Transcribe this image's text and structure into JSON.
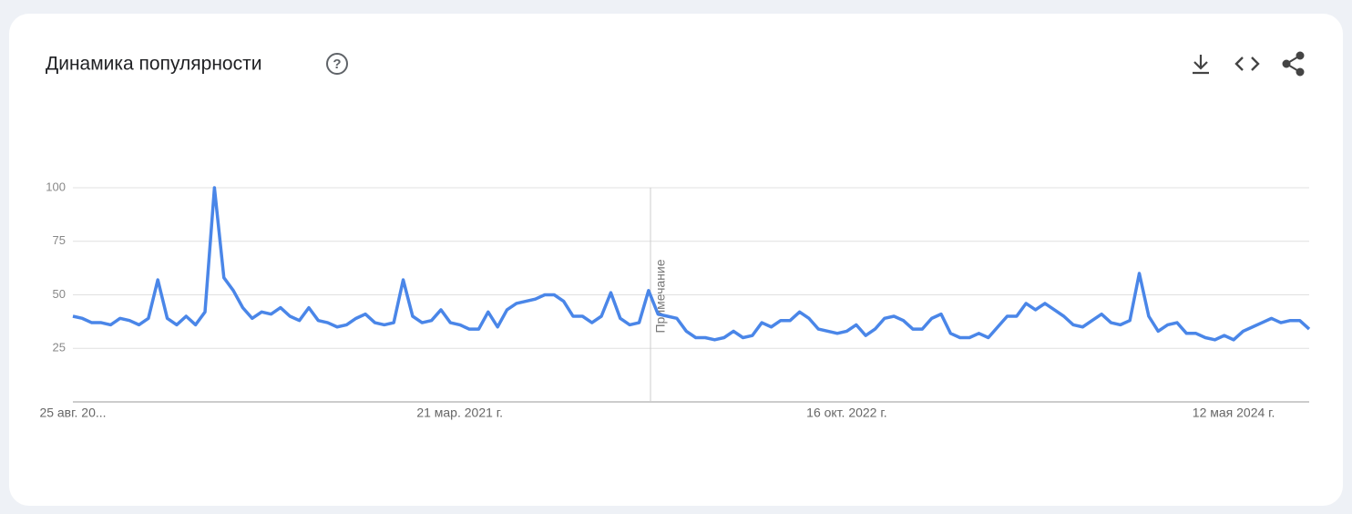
{
  "chart_data": {
    "type": "line",
    "title": "Динамика популярности",
    "annotation": "Примечание",
    "color": "#4a86e8",
    "grid": true,
    "ylim": [
      0,
      100
    ],
    "yticks": [
      25,
      50,
      75,
      100
    ],
    "categories": [
      "25 авг. 20...",
      null,
      null,
      null,
      null,
      null,
      null,
      null,
      null,
      null,
      null,
      null,
      null,
      null,
      null,
      null,
      null,
      null,
      null,
      null,
      null,
      null,
      null,
      null,
      null,
      null,
      null,
      null,
      null,
      null,
      null,
      null,
      null,
      null,
      null,
      null,
      null,
      null,
      null,
      null,
      null,
      "21 мар. 2021 г.",
      null,
      null,
      null,
      null,
      null,
      null,
      null,
      null,
      null,
      null,
      null,
      null,
      null,
      null,
      null,
      null,
      null,
      null,
      null,
      null,
      null,
      null,
      null,
      null,
      null,
      null,
      null,
      null,
      null,
      null,
      null,
      null,
      null,
      null,
      null,
      null,
      null,
      null,
      null,
      null,
      "16 окт. 2022 г.",
      null,
      null,
      null,
      null,
      null,
      null,
      null,
      null,
      null,
      null,
      null,
      null,
      null,
      null,
      null,
      null,
      null,
      null,
      null,
      null,
      null,
      null,
      null,
      null,
      null,
      null,
      null,
      null,
      null,
      null,
      null,
      null,
      null,
      null,
      null,
      null,
      null,
      null,
      null,
      null,
      "12 мая 2024 г.",
      null,
      null,
      null,
      null,
      null,
      null,
      null,
      null
    ],
    "values": [
      40,
      39,
      37,
      37,
      36,
      39,
      38,
      36,
      39,
      57,
      39,
      36,
      40,
      36,
      42,
      100,
      58,
      52,
      44,
      39,
      42,
      41,
      44,
      40,
      38,
      44,
      38,
      37,
      35,
      36,
      39,
      41,
      37,
      36,
      37,
      57,
      40,
      37,
      38,
      43,
      37,
      36,
      34,
      34,
      42,
      35,
      43,
      46,
      47,
      48,
      50,
      50,
      47,
      40,
      40,
      37,
      40,
      51,
      39,
      36,
      37,
      52,
      41,
      40,
      39,
      33,
      30,
      30,
      29,
      30,
      33,
      30,
      31,
      37,
      35,
      38,
      38,
      42,
      39,
      34,
      33,
      32,
      33,
      36,
      31,
      34,
      39,
      40,
      38,
      34,
      34,
      39,
      41,
      32,
      30,
      30,
      32,
      30,
      35,
      40,
      40,
      46,
      43,
      46,
      43,
      40,
      36,
      35,
      38,
      41,
      37,
      36,
      38,
      60,
      40,
      33,
      36,
      37,
      32,
      32,
      30,
      29,
      31,
      29,
      33,
      35,
      37,
      39,
      37,
      38,
      38,
      34
    ]
  }
}
